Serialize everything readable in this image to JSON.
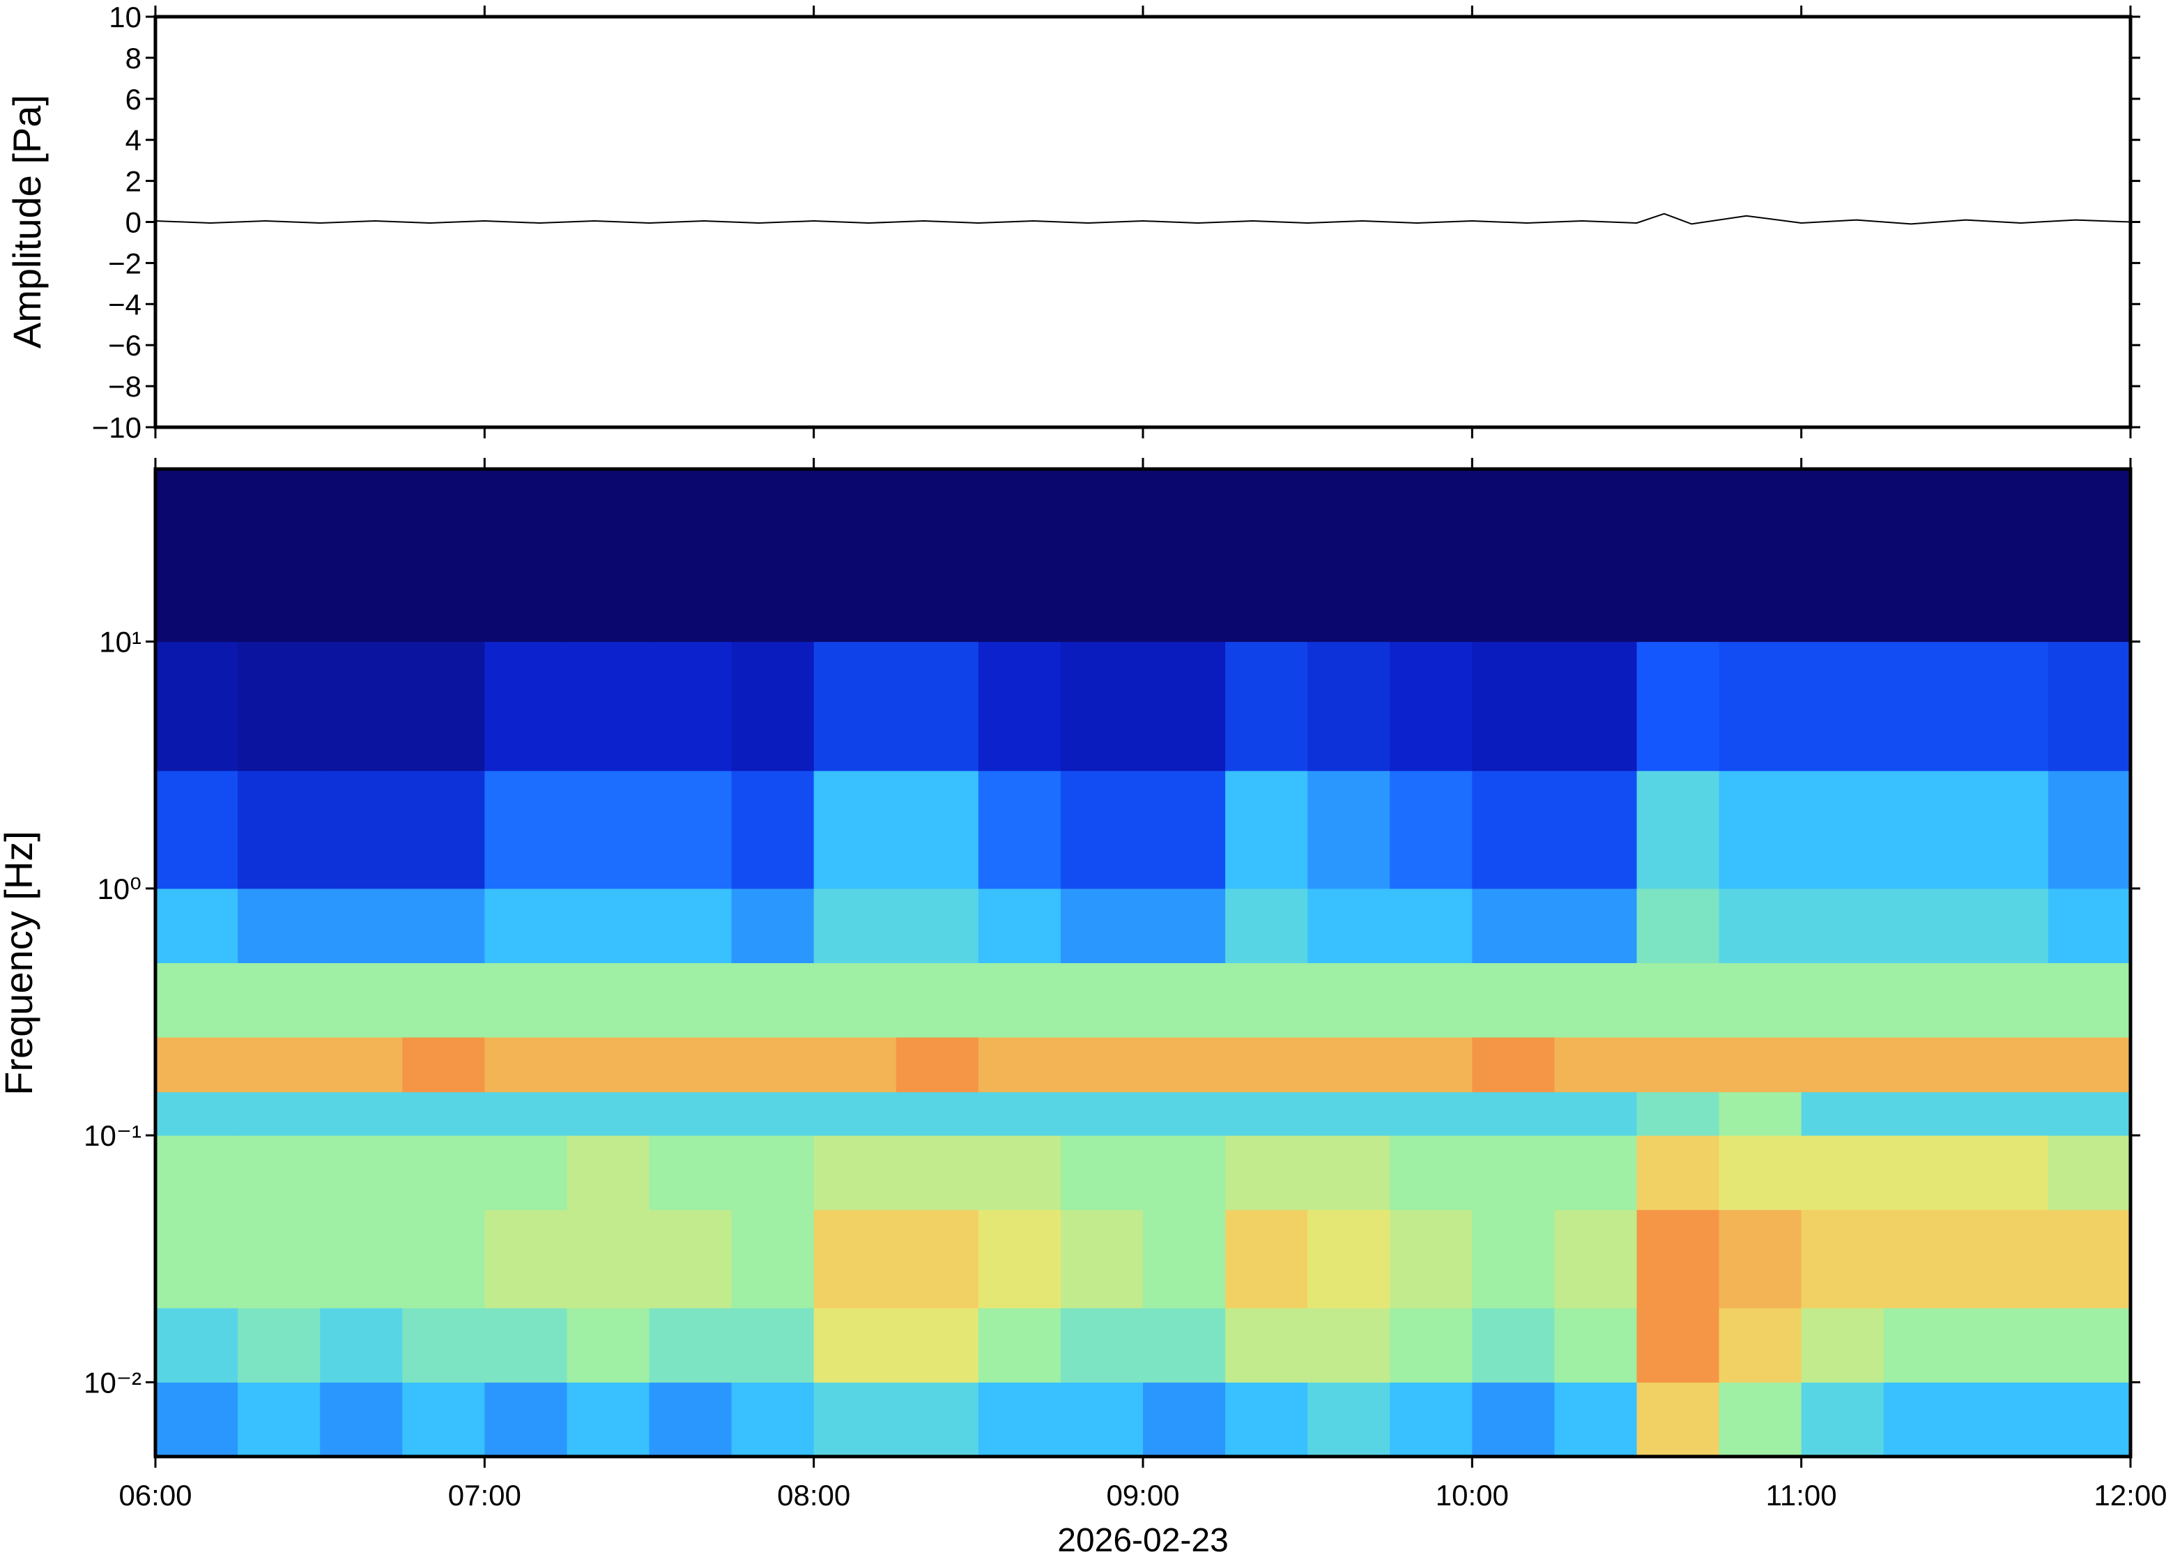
{
  "chart_data": [
    {
      "type": "line",
      "ylabel": "Amplitude [Pa]",
      "color": "#000000",
      "xlim": [
        "2026-02-23T06:00",
        "2026-02-23T12:00"
      ],
      "ylim": [
        -10,
        10
      ],
      "yticks": [
        {
          "value": -10,
          "label": "−10"
        },
        {
          "value": -8,
          "label": "−8"
        },
        {
          "value": -6,
          "label": "−6"
        },
        {
          "value": -4,
          "label": "−4"
        },
        {
          "value": -2,
          "label": "−2"
        },
        0,
        2,
        4,
        6,
        8,
        10
      ],
      "x": [
        "2026-02-23T06:00",
        "2026-02-23T06:10",
        "2026-02-23T06:20",
        "2026-02-23T06:30",
        "2026-02-23T06:40",
        "2026-02-23T06:50",
        "2026-02-23T07:00",
        "2026-02-23T07:10",
        "2026-02-23T07:20",
        "2026-02-23T07:30",
        "2026-02-23T07:40",
        "2026-02-23T07:50",
        "2026-02-23T08:00",
        "2026-02-23T08:10",
        "2026-02-23T08:20",
        "2026-02-23T08:30",
        "2026-02-23T08:40",
        "2026-02-23T08:50",
        "2026-02-23T09:00",
        "2026-02-23T09:10",
        "2026-02-23T09:20",
        "2026-02-23T09:30",
        "2026-02-23T09:40",
        "2026-02-23T09:50",
        "2026-02-23T10:00",
        "2026-02-23T10:10",
        "2026-02-23T10:20",
        "2026-02-23T10:30",
        "2026-02-23T10:35",
        "2026-02-23T10:40",
        "2026-02-23T10:50",
        "2026-02-23T11:00",
        "2026-02-23T11:10",
        "2026-02-23T11:20",
        "2026-02-23T11:30",
        "2026-02-23T11:40",
        "2026-02-23T11:50",
        "2026-02-23T12:00"
      ],
      "values": [
        0.05,
        -0.05,
        0.05,
        -0.05,
        0.05,
        -0.05,
        0.05,
        -0.05,
        0.05,
        -0.05,
        0.05,
        -0.05,
        0.05,
        -0.05,
        0.05,
        -0.05,
        0.05,
        -0.05,
        0.05,
        -0.05,
        0.05,
        -0.05,
        0.05,
        -0.05,
        0.05,
        -0.05,
        0.05,
        -0.05,
        0.4,
        -0.1,
        0.3,
        -0.05,
        0.1,
        -0.1,
        0.1,
        -0.05,
        0.1,
        0
      ]
    },
    {
      "type": "heatmap",
      "ylabel": "Frequency [Hz]",
      "xlabel": "2026-02-23",
      "colormap": "jet",
      "log_y": true,
      "xlim": [
        "2026-02-23T06:00",
        "2026-02-23T12:00"
      ],
      "xticks": [
        {
          "value": "2026-02-23T06:00",
          "label": "06:00"
        },
        {
          "value": "2026-02-23T07:00",
          "label": "07:00"
        },
        {
          "value": "2026-02-23T08:00",
          "label": "08:00"
        },
        {
          "value": "2026-02-23T09:00",
          "label": "09:00"
        },
        {
          "value": "2026-02-23T10:00",
          "label": "10:00"
        },
        {
          "value": "2026-02-23T11:00",
          "label": "11:00"
        },
        {
          "value": "2026-02-23T12:00",
          "label": "12:00"
        }
      ],
      "ylim": [
        0.005,
        50
      ],
      "yticks": [
        {
          "value": 0.01,
          "label": "10⁻²"
        },
        {
          "value": 0.1,
          "label": "10⁻¹"
        },
        {
          "value": 1,
          "label": "10⁰"
        },
        {
          "value": 10,
          "label": "10¹"
        }
      ],
      "xbins": [
        "2026-02-23T06:00",
        "2026-02-23T06:15",
        "2026-02-23T06:30",
        "2026-02-23T06:45",
        "2026-02-23T07:00",
        "2026-02-23T07:15",
        "2026-02-23T07:30",
        "2026-02-23T07:45",
        "2026-02-23T08:00",
        "2026-02-23T08:15",
        "2026-02-23T08:30",
        "2026-02-23T08:45",
        "2026-02-23T09:00",
        "2026-02-23T09:15",
        "2026-02-23T09:30",
        "2026-02-23T09:45",
        "2026-02-23T10:00",
        "2026-02-23T10:15",
        "2026-02-23T10:30",
        "2026-02-23T10:45",
        "2026-02-23T11:00",
        "2026-02-23T11:15",
        "2026-02-23T11:30",
        "2026-02-23T11:45",
        "2026-02-23T12:00"
      ],
      "ybins": [
        0.005,
        0.01,
        0.02,
        0.05,
        0.1,
        0.15,
        0.25,
        0.5,
        1,
        3,
        10,
        50
      ],
      "z": [
        [
          3,
          3.5,
          3,
          3.5,
          3,
          3.5,
          3,
          3.5,
          4,
          4,
          3.5,
          3.5,
          3,
          3.5,
          4,
          3.5,
          3,
          3.5,
          6.5,
          5,
          4,
          3.5,
          3.5,
          3.5
        ],
        [
          4,
          4.5,
          4,
          4.5,
          4.5,
          5,
          4.5,
          4.5,
          6,
          6,
          5,
          4.5,
          4.5,
          5.5,
          5.5,
          5,
          4.5,
          5,
          7.5,
          6.5,
          5.5,
          5,
          5,
          5
        ],
        [
          5,
          5,
          5,
          5,
          5.5,
          5.5,
          5.5,
          5,
          6.5,
          6.5,
          6,
          5.5,
          5,
          6.5,
          6,
          5.5,
          5,
          5.5,
          7.5,
          7,
          6.5,
          6.5,
          6.5,
          6.5
        ],
        [
          5,
          5,
          5,
          5,
          5,
          5.5,
          5,
          5,
          5.5,
          5.5,
          5.5,
          5,
          5,
          5.5,
          5.5,
          5,
          5,
          5,
          6.5,
          6,
          6,
          6,
          6,
          5.5
        ],
        [
          4,
          4,
          4,
          4,
          4,
          4,
          4,
          4,
          4,
          4,
          4,
          4,
          4,
          4,
          4,
          4,
          4,
          4,
          4.5,
          5,
          4,
          4,
          4,
          4
        ],
        [
          7,
          7,
          7,
          7.5,
          7,
          7,
          7,
          7,
          7,
          7.5,
          7,
          7,
          7,
          7,
          7,
          7,
          7.5,
          7,
          7,
          7,
          7,
          7,
          7,
          7
        ],
        [
          5,
          5,
          5,
          5,
          5,
          5,
          5,
          5,
          5,
          5,
          5,
          5,
          5,
          5,
          5,
          5,
          5,
          5,
          5,
          5,
          5,
          5,
          5,
          5
        ],
        [
          3.5,
          3,
          3,
          3,
          3.5,
          3.5,
          3.5,
          3,
          4,
          4,
          3.5,
          3,
          3,
          4,
          3.5,
          3.5,
          3,
          3,
          4.5,
          4,
          4,
          4,
          4,
          3.5
        ],
        [
          2,
          1.5,
          1.5,
          1.5,
          2.5,
          2.5,
          2.5,
          2,
          3.5,
          3.5,
          2.5,
          2,
          2,
          3.5,
          3,
          2.5,
          2,
          2,
          4,
          3.5,
          3.5,
          3.5,
          3.5,
          3
        ],
        [
          0.8,
          0.6,
          0.6,
          0.6,
          1.2,
          1.2,
          1.2,
          1,
          1.8,
          1.8,
          1.2,
          1,
          1,
          1.8,
          1.5,
          1.2,
          1,
          1,
          2.2,
          2,
          2,
          2,
          2,
          1.8
        ],
        [
          0,
          0,
          0,
          0,
          0,
          0,
          0,
          0,
          0,
          0,
          0,
          0,
          0,
          0,
          0,
          0,
          0,
          0,
          0,
          0,
          0,
          0,
          0,
          0
        ]
      ]
    }
  ]
}
